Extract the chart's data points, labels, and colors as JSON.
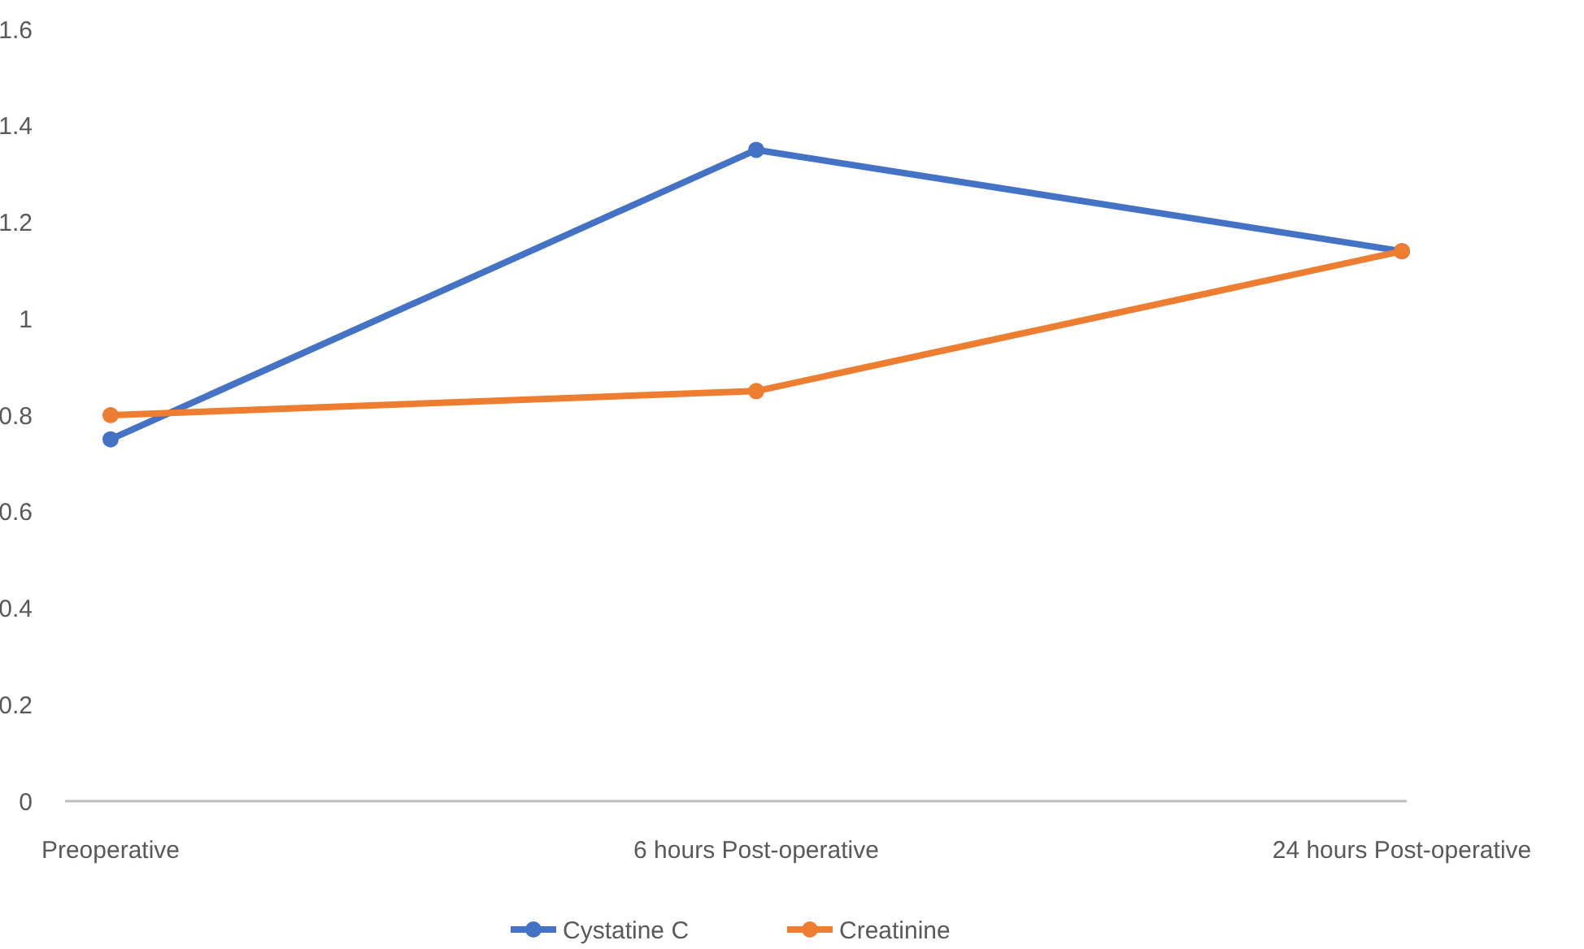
{
  "chart_data": {
    "type": "line",
    "categories": [
      "Preoperative",
      "6 hours Post-operative",
      "24 hours Post-operative"
    ],
    "series": [
      {
        "name": "Cystatine C",
        "color": "#4472c4",
        "values": [
          0.75,
          1.35,
          1.14
        ]
      },
      {
        "name": "Creatinine",
        "color": "#ed7d31",
        "values": [
          0.8,
          0.85,
          1.14
        ]
      }
    ],
    "ylim": [
      0,
      1.6
    ],
    "yticks": [
      0,
      {
        "value": 0.2,
        "label": "0.2"
      },
      {
        "value": 0.4,
        "label": "0.4"
      },
      {
        "value": 0.6,
        "label": "0.6"
      },
      {
        "value": 0.8,
        "label": "0.8"
      },
      1,
      {
        "value": 1.2,
        "label": "1.2"
      },
      {
        "value": 1.4,
        "label": "1.4"
      },
      {
        "value": 1.6,
        "label": "1.6"
      }
    ],
    "grid": false,
    "legend": "bottom",
    "marker": "circle",
    "line_style": "solid"
  }
}
